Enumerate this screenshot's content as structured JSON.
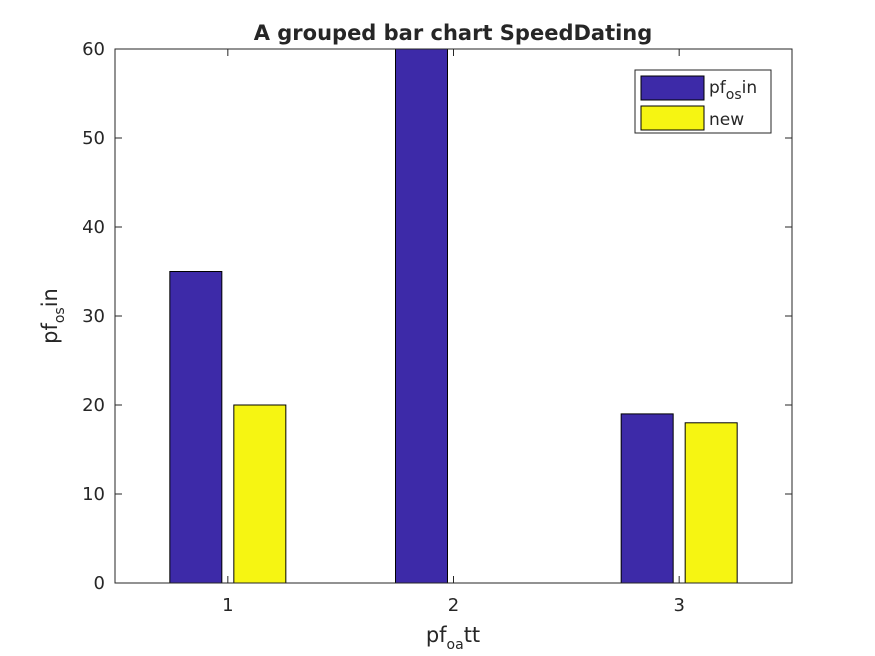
{
  "chart_data": {
    "type": "bar",
    "title": "A grouped bar chart SpeedDating",
    "xlabel": {
      "base": "pf",
      "sub": "oa",
      "tail": "tt"
    },
    "ylabel": {
      "base": "pf",
      "sub": "os",
      "tail": "in"
    },
    "categories": [
      "1",
      "2",
      "3"
    ],
    "ylim": [
      0,
      60
    ],
    "yticks": [
      0,
      10,
      20,
      30,
      40,
      50,
      60
    ],
    "series": [
      {
        "name": {
          "base": "pf",
          "sub": "os",
          "tail": "in"
        },
        "color": "#3d2aa8",
        "values": [
          35,
          60,
          19
        ]
      },
      {
        "name": {
          "base": "new",
          "sub": "",
          "tail": ""
        },
        "color": "#f6f512",
        "values": [
          20,
          0,
          18
        ]
      }
    ],
    "grid": false,
    "legend": "top-right"
  }
}
